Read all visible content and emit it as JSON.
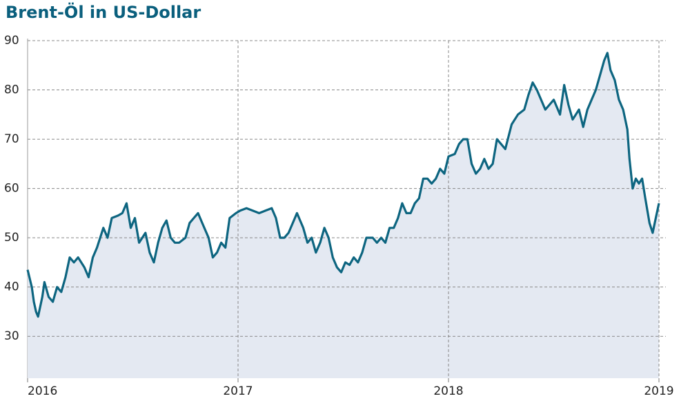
{
  "chart_data": {
    "type": "area-line",
    "title": "Brent-Öl in US-Dollar",
    "x": [
      2016.0,
      2016.02,
      2016.03,
      2016.04,
      2016.05,
      2016.07,
      2016.08,
      2016.1,
      2016.12,
      2016.14,
      2016.16,
      2016.18,
      2016.2,
      2016.22,
      2016.24,
      2016.27,
      2016.29,
      2016.31,
      2016.33,
      2016.36,
      2016.38,
      2016.4,
      2016.43,
      2016.45,
      2016.47,
      2016.49,
      2016.51,
      2016.53,
      2016.56,
      2016.58,
      2016.6,
      2016.62,
      2016.64,
      2016.66,
      2016.68,
      2016.7,
      2016.72,
      2016.75,
      2016.77,
      2016.79,
      2016.81,
      2016.83,
      2016.86,
      2016.88,
      2016.9,
      2016.92,
      2016.94,
      2016.96,
      2016.99,
      2017.01,
      2017.04,
      2017.07,
      2017.1,
      2017.13,
      2017.16,
      2017.18,
      2017.2,
      2017.22,
      2017.24,
      2017.26,
      2017.28,
      2017.31,
      2017.33,
      2017.35,
      2017.37,
      2017.39,
      2017.41,
      2017.43,
      2017.45,
      2017.47,
      2017.49,
      2017.51,
      2017.53,
      2017.55,
      2017.57,
      2017.59,
      2017.61,
      2017.64,
      2017.66,
      2017.68,
      2017.7,
      2017.72,
      2017.74,
      2017.76,
      2017.78,
      2017.8,
      2017.82,
      2017.84,
      2017.86,
      2017.88,
      2017.9,
      2017.92,
      2017.94,
      2017.96,
      2017.98,
      2018.0,
      2018.03,
      2018.05,
      2018.07,
      2018.09,
      2018.11,
      2018.13,
      2018.15,
      2018.17,
      2018.19,
      2018.21,
      2018.23,
      2018.25,
      2018.27,
      2018.3,
      2018.33,
      2018.36,
      2018.38,
      2018.4,
      2018.42,
      2018.44,
      2018.46,
      2018.48,
      2018.5,
      2018.53,
      2018.55,
      2018.57,
      2018.59,
      2018.62,
      2018.64,
      2018.66,
      2018.68,
      2018.7,
      2018.72,
      2018.74,
      2018.755,
      2018.77,
      2018.79,
      2018.81,
      2018.83,
      2018.85,
      2018.86,
      2018.875,
      2018.89,
      2018.905,
      2018.92,
      2018.935,
      2018.955,
      2018.97,
      2018.985,
      2019.0
    ],
    "series": [
      {
        "color": "#0d6580",
        "fill": "#e4e9f2",
        "values": [
          43.5,
          40,
          37,
          35,
          34,
          38,
          41,
          38,
          37,
          40,
          39,
          42,
          46,
          45,
          46,
          44,
          42,
          46,
          48,
          52,
          50,
          54,
          54.5,
          55,
          57,
          52,
          54,
          49,
          51,
          47,
          45,
          49,
          52,
          53.5,
          50,
          49,
          49,
          50,
          53,
          54,
          55,
          53,
          50,
          46,
          47,
          49,
          48,
          54,
          55,
          55.5,
          56,
          55.5,
          55,
          55.5,
          56,
          54,
          50,
          50,
          51,
          53,
          55,
          52,
          49,
          50,
          47,
          49,
          52,
          50,
          46,
          44,
          43,
          45,
          44.5,
          46,
          45,
          47,
          50,
          50,
          49,
          50,
          49,
          52,
          52,
          54,
          57,
          55,
          55,
          57,
          58,
          62,
          62,
          61,
          62,
          64,
          63,
          66.5,
          67,
          69,
          70,
          70,
          65,
          63,
          64,
          66,
          64,
          65,
          70,
          69,
          68,
          73,
          75,
          76,
          79,
          81.5,
          80,
          78,
          76,
          77,
          78,
          75,
          81,
          77,
          74,
          76,
          72.5,
          76,
          78,
          80,
          83,
          86,
          87.5,
          84,
          82,
          78,
          76,
          72,
          66,
          60,
          62,
          61,
          62,
          58,
          53,
          51,
          54,
          57
        ]
      }
    ],
    "xlim": [
      2016,
      2019
    ],
    "xticks": [
      2016,
      2017,
      2018,
      2019
    ],
    "ylim": [
      21.5,
      90
    ],
    "yticks": [
      30,
      40,
      50,
      60,
      70,
      80,
      90
    ],
    "grid": true
  }
}
